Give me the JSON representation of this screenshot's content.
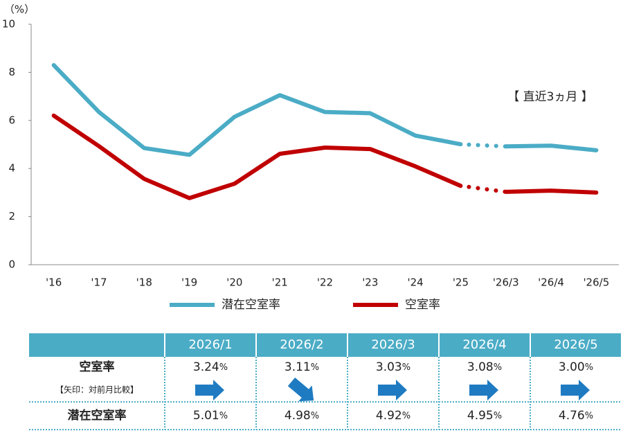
{
  "chart_data": {
    "type": "line",
    "y_label": "（%）",
    "annotation": "【 直近3ヵ月 】",
    "categories": [
      "'16",
      "'17",
      "'18",
      "'19",
      "'20",
      "'21",
      "'22",
      "'23",
      "'24",
      "'25",
      "'26/3",
      "'26/4",
      "'26/5"
    ],
    "series": [
      {
        "name": "潜在空室率",
        "color": "#4bacc6",
        "values": [
          8.3,
          6.35,
          4.85,
          4.57,
          6.15,
          7.05,
          6.35,
          6.3,
          5.37,
          5.01,
          4.92,
          4.95,
          4.76
        ]
      },
      {
        "name": "空室率",
        "color": "#c00000",
        "values": [
          6.2,
          4.93,
          3.57,
          2.77,
          3.37,
          4.61,
          4.87,
          4.81,
          4.09,
          3.28,
          3.03,
          3.08,
          3.0
        ]
      }
    ],
    "ylim": [
      0,
      10
    ],
    "yticks": [
      0,
      2,
      4,
      6,
      8,
      10
    ],
    "grid": false
  },
  "table": {
    "header": [
      "2026/1",
      "2026/2",
      "2026/3",
      "2026/4",
      "2026/5"
    ],
    "unit": "%",
    "rows": [
      {
        "label": "空室率",
        "note": "【矢印：対前月比較】",
        "values": [
          "3.24",
          "3.11",
          "3.03",
          "3.08",
          "3.00"
        ]
      },
      {
        "label": "潜在空室率",
        "values": [
          "5.01",
          "4.98",
          "4.92",
          "4.95",
          "4.76"
        ]
      }
    ]
  }
}
